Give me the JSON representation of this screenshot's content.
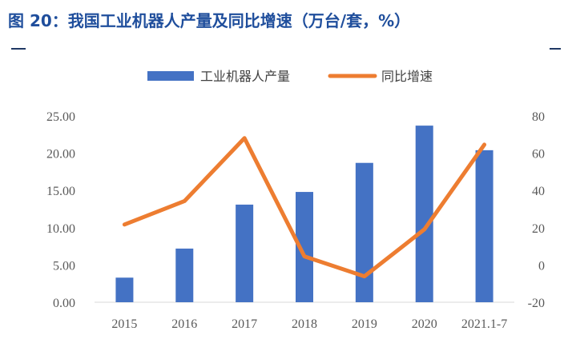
{
  "figure": {
    "title": "图 20：我国工业机器人产量及同比增速（万台/套，%）"
  },
  "colors": {
    "title": "#1f4e9c",
    "bar": "#4472c4",
    "line": "#ed7d31",
    "axis_text": "#595959"
  },
  "chart_data": {
    "type": "bar",
    "categories": [
      "2015",
      "2016",
      "2017",
      "2018",
      "2019",
      "2020",
      "2021.1-7"
    ],
    "series": [
      {
        "name": "工业机器人产量",
        "type": "bar",
        "axis": "left",
        "values": [
          3.3,
          7.2,
          13.1,
          14.8,
          18.7,
          23.7,
          20.4
        ]
      },
      {
        "name": "同比增速",
        "type": "line",
        "axis": "right",
        "values": [
          21.7,
          34.3,
          68.1,
          4.6,
          -6.1,
          19.1,
          64.6
        ]
      }
    ],
    "y_left": {
      "min": 0,
      "max": 25,
      "ticks": [
        "0.00",
        "5.00",
        "10.00",
        "15.00",
        "20.00",
        "25.00"
      ]
    },
    "y_right": {
      "min": -20,
      "max": 80,
      "ticks": [
        "-20",
        "0",
        "20",
        "40",
        "60",
        "80"
      ]
    },
    "legend_position": "top-center",
    "grid": false
  }
}
